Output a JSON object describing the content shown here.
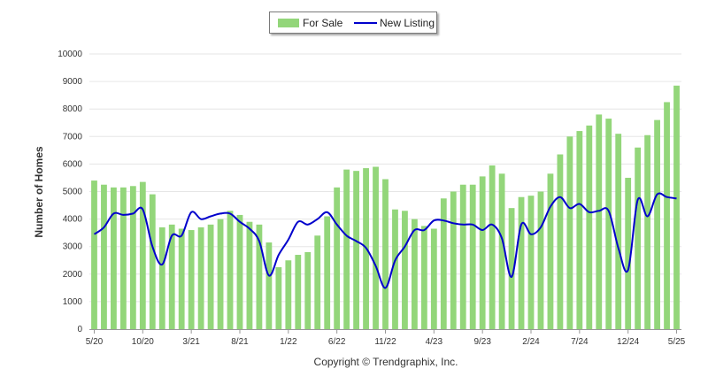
{
  "legend": {
    "for_sale_label": "For Sale",
    "new_listing_label": "New Listing"
  },
  "colors": {
    "bar": "#93d67a",
    "line": "#0000cc",
    "grid": "#e6e6e6"
  },
  "footer": {
    "copyright": "Copyright © Trendgraphix, Inc."
  },
  "chart_data": {
    "type": "bar",
    "title": "",
    "ylabel": "Number of Homes",
    "xlabel": "",
    "ylim": [
      0,
      10000
    ],
    "yticks": [
      0,
      1000,
      2000,
      3000,
      4000,
      5000,
      6000,
      7000,
      8000,
      9000,
      10000
    ],
    "grid": true,
    "legend_position": "top-center",
    "categories": [
      "5/20",
      "6/20",
      "7/20",
      "8/20",
      "9/20",
      "10/20",
      "11/20",
      "12/20",
      "1/21",
      "2/21",
      "3/21",
      "4/21",
      "5/21",
      "6/21",
      "7/21",
      "8/21",
      "9/21",
      "10/21",
      "11/21",
      "12/21",
      "1/22",
      "2/22",
      "3/22",
      "4/22",
      "5/22",
      "6/22",
      "7/22",
      "8/22",
      "9/22",
      "10/22",
      "11/22",
      "12/22",
      "1/23",
      "2/23",
      "3/23",
      "4/23",
      "5/23",
      "6/23",
      "7/23",
      "8/23",
      "9/23",
      "10/23",
      "11/23",
      "12/23",
      "1/24",
      "2/24",
      "3/24",
      "4/24",
      "5/24",
      "6/24",
      "7/24",
      "8/24",
      "9/24",
      "10/24",
      "11/24",
      "12/24",
      "1/25",
      "2/25",
      "3/25",
      "4/25",
      "5/25"
    ],
    "x_tick_labels": [
      "5/20",
      "10/20",
      "3/21",
      "8/21",
      "1/22",
      "6/22",
      "11/22",
      "4/23",
      "9/23",
      "2/24",
      "7/24",
      "12/24",
      "5/25"
    ],
    "series": [
      {
        "name": "For Sale",
        "type": "bar",
        "values": [
          5400,
          5250,
          5150,
          5150,
          5200,
          5350,
          4900,
          3700,
          3800,
          3650,
          3600,
          3700,
          3800,
          4000,
          4300,
          4150,
          3900,
          3800,
          3150,
          2250,
          2500,
          2700,
          2800,
          3400,
          4100,
          5150,
          5800,
          5750,
          5850,
          5900,
          5450,
          4350,
          4300,
          4000,
          3750,
          3650,
          4750,
          5000,
          5250,
          5250,
          5550,
          5950,
          5650,
          4400,
          4800,
          4850,
          5000,
          5650,
          6350,
          7000,
          7200,
          7400,
          7800,
          7650,
          7100,
          5500,
          6600,
          7050,
          7600,
          8250,
          8850
        ]
      },
      {
        "name": "New Listing",
        "type": "line",
        "values": [
          3450,
          3700,
          4200,
          4150,
          4200,
          4350,
          3000,
          2350,
          3400,
          3400,
          4250,
          4000,
          4100,
          4200,
          4200,
          3900,
          3650,
          3200,
          1950,
          2700,
          3250,
          3900,
          3800,
          4000,
          4250,
          3800,
          3400,
          3200,
          2950,
          2300,
          1500,
          2500,
          3000,
          3600,
          3600,
          3950,
          3950,
          3850,
          3800,
          3800,
          3600,
          3800,
          3300,
          1900,
          3800,
          3450,
          3700,
          4450,
          4800,
          4400,
          4550,
          4250,
          4300,
          4300,
          2950,
          2150,
          4700,
          4100,
          4900,
          4800,
          4750
        ]
      }
    ]
  }
}
